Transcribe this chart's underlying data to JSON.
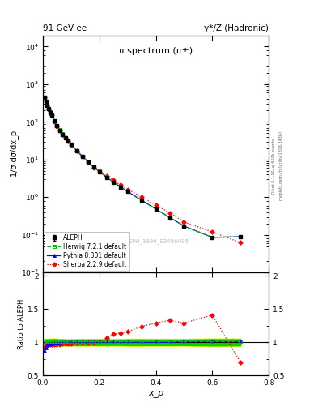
{
  "title_left": "91 GeV ee",
  "title_right": "γ*/Z (Hadronic)",
  "plot_title": "π spectrum (π±)",
  "watermark": "ALEPH_1996_S3486095",
  "ylabel_main": "1/σ dσ/dx_p",
  "ylabel_ratio": "Ratio to ALEPH",
  "xlabel": "x_p",
  "right_label": "mcplots.cern.ch [arXiv:1306.3436]",
  "right_label2": "Rivet 3.1.10, ≥ 600k events",
  "xp": [
    0.005,
    0.01,
    0.015,
    0.02,
    0.025,
    0.03,
    0.04,
    0.05,
    0.06,
    0.07,
    0.08,
    0.09,
    0.1,
    0.12,
    0.14,
    0.16,
    0.18,
    0.2,
    0.225,
    0.25,
    0.275,
    0.3,
    0.35,
    0.4,
    0.45,
    0.5,
    0.6,
    0.7
  ],
  "aleph_y": [
    450,
    350,
    280,
    220,
    180,
    150,
    105,
    78,
    60,
    47,
    38,
    31,
    25,
    17,
    12,
    8.5,
    6.2,
    4.8,
    3.4,
    2.5,
    1.85,
    1.4,
    0.82,
    0.48,
    0.285,
    0.17,
    0.085,
    0.088
  ],
  "aleph_yerr": [
    20,
    15,
    12,
    10,
    8,
    7,
    5,
    3.5,
    2.5,
    2.0,
    1.5,
    1.2,
    1.0,
    0.7,
    0.5,
    0.35,
    0.25,
    0.2,
    0.14,
    0.1,
    0.075,
    0.06,
    0.035,
    0.02,
    0.012,
    0.007,
    0.004,
    0.004
  ],
  "herwig_y": [
    460,
    355,
    285,
    225,
    182,
    152,
    107,
    79,
    61,
    48,
    38.5,
    31.5,
    25.5,
    17.3,
    12.2,
    8.7,
    6.3,
    4.85,
    3.42,
    2.52,
    1.87,
    1.42,
    0.83,
    0.49,
    0.288,
    0.172,
    0.086,
    0.089
  ],
  "herwig_ratio": [
    1.02,
    1.01,
    1.01,
    1.01,
    1.01,
    1.01,
    1.01,
    1.01,
    1.01,
    1.01,
    1.01,
    1.01,
    1.01,
    1.01,
    1.01,
    1.01,
    1.01,
    1.01,
    1.01,
    1.01,
    1.01,
    1.01,
    1.01,
    1.01,
    1.01,
    1.01,
    1.01,
    1.01
  ],
  "pythia_y": [
    455,
    352,
    282,
    222,
    181,
    151,
    106,
    78.5,
    60.5,
    47.5,
    38.2,
    31.2,
    25.2,
    17.1,
    12.1,
    8.6,
    6.25,
    4.82,
    3.41,
    2.51,
    1.86,
    1.41,
    0.825,
    0.485,
    0.286,
    0.171,
    0.0855,
    0.089
  ],
  "pythia_ratio": [
    0.87,
    0.92,
    0.95,
    0.97,
    0.98,
    0.98,
    0.99,
    0.99,
    0.99,
    1.0,
    1.0,
    1.0,
    1.0,
    1.0,
    1.0,
    1.0,
    1.0,
    1.0,
    1.0,
    1.0,
    1.0,
    1.0,
    1.0,
    1.0,
    1.0,
    1.01,
    1.01,
    1.01
  ],
  "sherpa_y": [
    445,
    348,
    278,
    218,
    178,
    148,
    103,
    76.5,
    59,
    46.5,
    37.5,
    30.5,
    24.7,
    16.8,
    11.9,
    8.4,
    6.1,
    4.75,
    3.6,
    2.8,
    2.1,
    1.62,
    1.02,
    0.62,
    0.38,
    0.22,
    0.12,
    0.062
  ],
  "sherpa_ratio": [
    0.92,
    0.96,
    0.97,
    0.97,
    0.97,
    0.97,
    0.97,
    0.97,
    0.97,
    0.98,
    0.98,
    0.98,
    0.98,
    0.99,
    0.99,
    0.99,
    0.99,
    1.01,
    1.06,
    1.12,
    1.14,
    1.16,
    1.24,
    1.29,
    1.33,
    1.29,
    1.41,
    0.7
  ],
  "colors": {
    "aleph": "#000000",
    "herwig": "#00bb00",
    "pythia": "#0000ff",
    "sherpa": "#ff0000"
  },
  "band_color_inner": "#00cc00",
  "band_color_outer": "#ccff00",
  "ylim_main_log": [
    -2,
    4
  ],
  "ylim_main": [
    0.01,
    20000
  ],
  "ylim_ratio": [
    0.5,
    2.05
  ],
  "xlim": [
    0.0,
    0.8
  ]
}
